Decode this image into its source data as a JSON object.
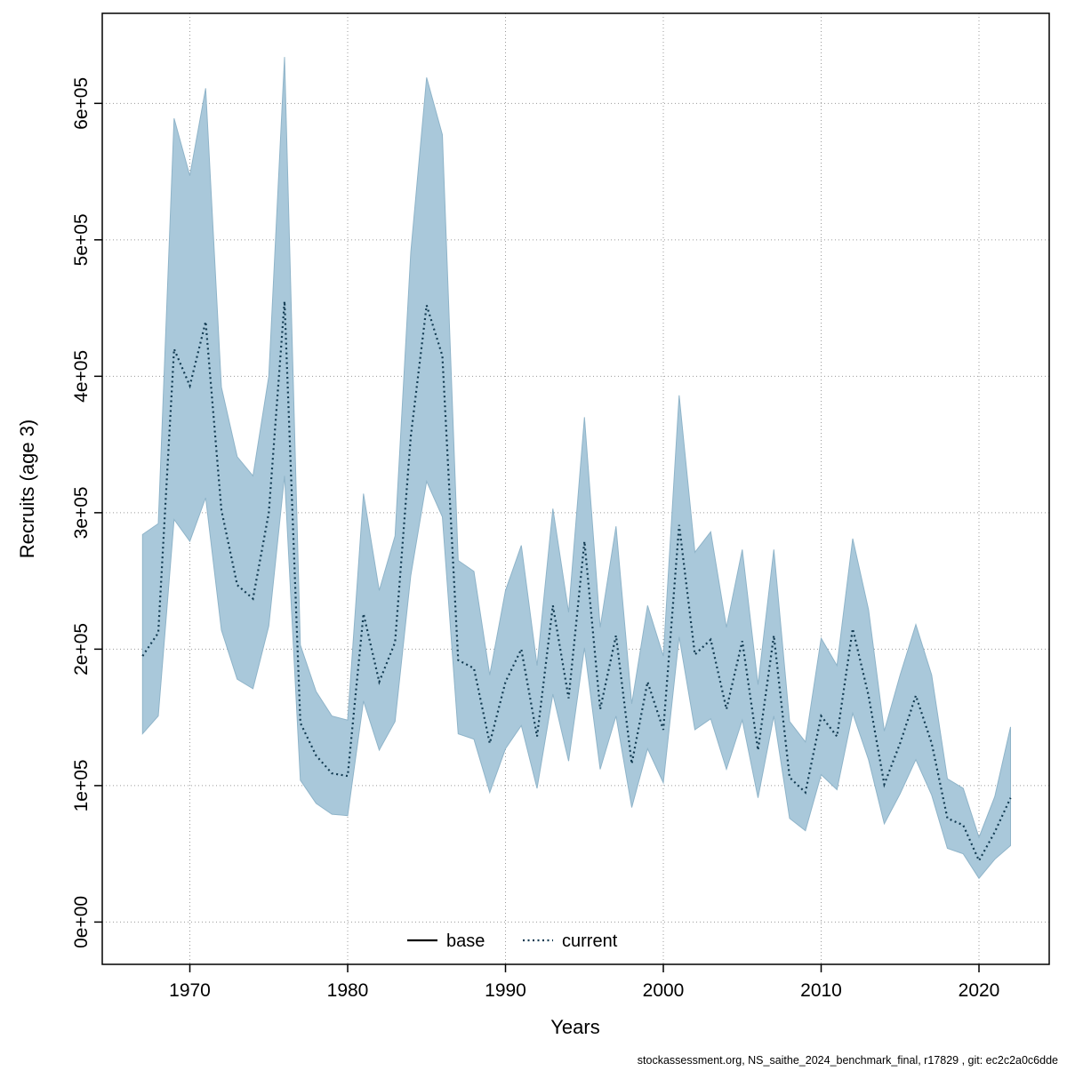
{
  "footer": "stockassessment.org, NS_saithe_2024_benchmark_final, r17829 , git: ec2c2a0c6dde",
  "chart_data": {
    "type": "area",
    "title": "",
    "xlabel": "Years",
    "ylabel": "Recruits (age 3)",
    "xlim": [
      1964.45,
      2024.45
    ],
    "ylim": [
      -31000,
      666000
    ],
    "grid": true,
    "x_ticks": [
      1970,
      1980,
      1990,
      2000,
      2010,
      2020
    ],
    "y_ticks": [
      0,
      100000,
      200000,
      300000,
      400000,
      500000,
      600000
    ],
    "y_tick_labels": [
      "0e+00",
      "1e+05",
      "2e+05",
      "3e+05",
      "4e+05",
      "5e+05",
      "6e+05"
    ],
    "legend_position": "bottom-center-inside",
    "legend": [
      {
        "label": "base",
        "style": "solid",
        "color": "#000000"
      },
      {
        "label": "current",
        "style": "dotted",
        "color": "#123b52"
      }
    ],
    "band_color": "#a9c8da",
    "band_edge_color": "#8fb4c9",
    "line_color": "#123b52",
    "grid_color": "#9a9a9a",
    "series": {
      "years": [
        1967,
        1968,
        1969,
        1970,
        1971,
        1972,
        1973,
        1974,
        1975,
        1976,
        1977,
        1978,
        1979,
        1980,
        1981,
        1982,
        1983,
        1984,
        1985,
        1986,
        1987,
        1988,
        1989,
        1990,
        1991,
        1992,
        1993,
        1994,
        1995,
        1996,
        1997,
        1998,
        1999,
        2000,
        2001,
        2002,
        2003,
        2004,
        2005,
        2006,
        2007,
        2008,
        2009,
        2010,
        2011,
        2012,
        2013,
        2014,
        2015,
        2016,
        2017,
        2018,
        2019,
        2020,
        2021,
        2022
      ],
      "current": [
        195000,
        212000,
        420000,
        393000,
        440000,
        302000,
        247000,
        237000,
        300000,
        455000,
        146000,
        122000,
        109000,
        107000,
        226000,
        176000,
        205000,
        356000,
        452000,
        415000,
        192000,
        186000,
        131000,
        176000,
        200000,
        136000,
        232000,
        164000,
        279000,
        156000,
        210000,
        116000,
        176000,
        141000,
        291000,
        196000,
        207000,
        156000,
        206000,
        126000,
        210000,
        106000,
        95000,
        151000,
        136000,
        215000,
        166000,
        101000,
        131000,
        166000,
        131000,
        76000,
        71000,
        45000,
        66000,
        91000
      ],
      "lower": [
        138000,
        151000,
        295000,
        279000,
        311000,
        214000,
        178000,
        171000,
        217000,
        327000,
        104000,
        87000,
        79000,
        78000,
        162000,
        126000,
        147000,
        254000,
        323000,
        297000,
        138000,
        134000,
        95000,
        127000,
        144000,
        98000,
        167000,
        118000,
        201000,
        112000,
        151000,
        84000,
        127000,
        102000,
        209000,
        141000,
        149000,
        112000,
        148000,
        91000,
        151000,
        76000,
        67000,
        108000,
        97000,
        153000,
        119000,
        72000,
        94000,
        119000,
        93000,
        54000,
        50000,
        32000,
        46000,
        56000
      ],
      "upper": [
        284000,
        292000,
        589000,
        547000,
        611000,
        392000,
        341000,
        327000,
        400000,
        634000,
        203000,
        169000,
        151000,
        148000,
        314000,
        243000,
        283000,
        491000,
        619000,
        577000,
        265000,
        257000,
        181000,
        243000,
        276000,
        188000,
        303000,
        227000,
        370000,
        216000,
        290000,
        160000,
        232000,
        195000,
        386000,
        271000,
        286000,
        216000,
        273000,
        174000,
        273000,
        147000,
        132000,
        208000,
        188000,
        281000,
        229000,
        140000,
        181000,
        218000,
        181000,
        105000,
        98000,
        62000,
        92000,
        143000
      ]
    }
  }
}
